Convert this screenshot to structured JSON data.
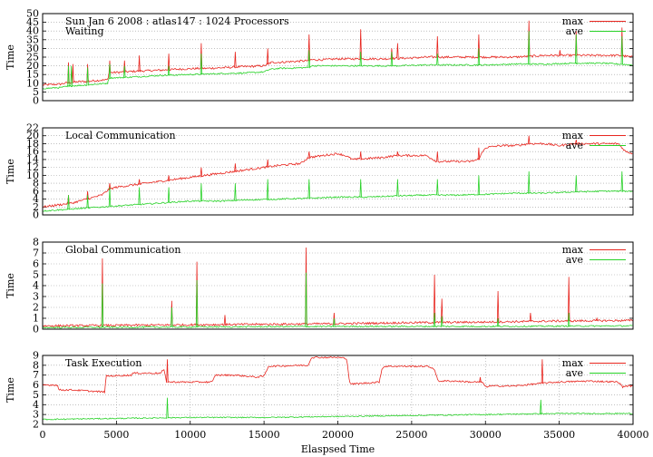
{
  "chart_data": [
    {
      "type": "line",
      "title": "Sun Jan 6 2008 : atlas147 : 1024 Processors",
      "subtitle": "Waiting",
      "ylabel": "Time",
      "xlabel": "",
      "ylim": [
        0,
        50
      ],
      "yticks": [
        "0",
        "5",
        "10",
        "15",
        "20",
        "25",
        "30",
        "35",
        "40",
        "45",
        "50"
      ],
      "ytick_values": [
        0,
        5,
        10,
        15,
        20,
        25,
        30,
        35,
        40,
        45,
        50
      ],
      "xlim": [
        0,
        40000
      ],
      "grid": true,
      "legend_position": "top-right",
      "colors": {
        "max": "#e8261f",
        "ave": "#28d228"
      },
      "series": [
        {
          "name": "max",
          "x": [
            0,
            1200,
            1500,
            2000,
            2600,
            3000,
            3500,
            4400,
            4500,
            5500,
            6500,
            8000,
            9000,
            10500,
            11000,
            12500,
            13500,
            15000,
            15500,
            16000,
            17000,
            18000,
            18200,
            19000,
            20000,
            21000,
            22000,
            23000,
            25000,
            26000,
            27000,
            28000,
            30000,
            31000,
            32000,
            33000,
            34000,
            35000,
            36000,
            37000,
            38000,
            39000,
            40000
          ],
          "values": [
            9,
            9.5,
            10,
            10.5,
            11,
            11,
            11.5,
            12,
            16,
            16.5,
            17,
            17.5,
            18,
            18.5,
            18.5,
            19,
            19.5,
            20,
            22,
            22,
            22.5,
            23,
            23.5,
            23.5,
            24,
            24,
            24,
            24,
            24.5,
            25,
            25,
            25,
            25,
            25,
            25,
            25.5,
            26,
            26,
            26,
            26,
            26,
            26,
            25
          ],
          "spikes": [
            [
              1700,
              22
            ],
            [
              2000,
              21
            ],
            [
              3000,
              21
            ],
            [
              4500,
              23
            ],
            [
              5500,
              23
            ],
            [
              6500,
              26
            ],
            [
              8500,
              27
            ],
            [
              10700,
              33
            ],
            [
              13000,
              28
            ],
            [
              15200,
              30
            ],
            [
              18000,
              38
            ],
            [
              21500,
              41
            ],
            [
              23600,
              30
            ],
            [
              24000,
              33
            ],
            [
              26700,
              37
            ],
            [
              29500,
              38
            ],
            [
              32900,
              46
            ],
            [
              35000,
              29
            ],
            [
              36100,
              40
            ],
            [
              39200,
              42
            ]
          ]
        },
        {
          "name": "ave",
          "x": [
            0,
            1200,
            1500,
            2000,
            3000,
            4400,
            4500,
            6000,
            8000,
            10000,
            12000,
            14000,
            15000,
            15400,
            16000,
            18000,
            18200,
            20000,
            22000,
            24000,
            26000,
            28000,
            30000,
            32000,
            34000,
            36000,
            38000,
            40000
          ],
          "values": [
            7,
            7.5,
            8,
            8.5,
            9,
            10,
            13,
            13.5,
            14.5,
            15,
            15.5,
            16,
            16.5,
            18,
            18.5,
            19,
            20,
            20,
            20,
            20,
            20.5,
            20.5,
            20.5,
            21,
            21,
            21.5,
            21.5,
            20.5
          ],
          "spikes": [
            [
              1700,
              20
            ],
            [
              1900,
              20
            ],
            [
              3000,
              19
            ],
            [
              4500,
              21
            ],
            [
              5500,
              20
            ],
            [
              8500,
              20
            ],
            [
              10700,
              27
            ],
            [
              18000,
              29
            ],
            [
              21500,
              28
            ],
            [
              23600,
              28
            ],
            [
              26700,
              27
            ],
            [
              29500,
              30
            ],
            [
              32900,
              40
            ],
            [
              36100,
              38
            ],
            [
              39200,
              37
            ]
          ]
        }
      ]
    },
    {
      "type": "line",
      "title": "Local Communication",
      "ylabel": "Time",
      "xlabel": "",
      "ylim": [
        0,
        22
      ],
      "yticks": [
        "0",
        "2",
        "4",
        "6",
        "8",
        "10",
        "12",
        "14",
        "16",
        "18",
        "20",
        "22"
      ],
      "ytick_values": [
        0,
        2,
        4,
        6,
        8,
        10,
        12,
        14,
        16,
        18,
        20,
        22
      ],
      "xlim": [
        0,
        40000
      ],
      "grid": true,
      "legend_position": "top-right",
      "colors": {
        "max": "#e8261f",
        "ave": "#28d228"
      },
      "series": [
        {
          "name": "max",
          "x": [
            0,
            1000,
            2000,
            3000,
            4000,
            4500,
            5000,
            6000,
            8000,
            10000,
            12000,
            14000,
            15000,
            16000,
            17500,
            18000,
            20000,
            20500,
            21000,
            23000,
            24000,
            26000,
            26700,
            27000,
            28000,
            29000,
            29500,
            30000,
            31000,
            32000,
            33000,
            34000,
            35000,
            36000,
            37000,
            38000,
            39000,
            39500,
            40000
          ],
          "values": [
            2,
            2.5,
            3,
            4,
            5,
            6.5,
            7,
            7.5,
            8.5,
            9.5,
            10.5,
            11.5,
            12,
            12.5,
            13,
            14.5,
            15.5,
            15,
            14,
            14.5,
            15,
            15,
            13.5,
            13.5,
            13.5,
            13.5,
            14,
            17,
            17.5,
            17.5,
            18,
            18,
            17.5,
            18,
            18,
            18,
            18,
            16,
            15.5
          ],
          "spikes": [
            [
              1700,
              5
            ],
            [
              3000,
              6
            ],
            [
              4500,
              8
            ],
            [
              6500,
              9
            ],
            [
              8500,
              10
            ],
            [
              10700,
              12
            ],
            [
              13000,
              13
            ],
            [
              15200,
              14
            ],
            [
              18000,
              16
            ],
            [
              21500,
              16
            ],
            [
              24000,
              16
            ],
            [
              26700,
              16
            ],
            [
              29500,
              17
            ],
            [
              32900,
              20
            ],
            [
              36100,
              19
            ],
            [
              38500,
              18
            ]
          ]
        },
        {
          "name": "ave",
          "x": [
            0,
            2000,
            4000,
            6000,
            8000,
            10000,
            12000,
            14000,
            16000,
            18000,
            20000,
            22000,
            24000,
            26000,
            28000,
            30000,
            32000,
            34000,
            36000,
            38000,
            40000
          ],
          "values": [
            1,
            1.5,
            2,
            2.5,
            3,
            3.5,
            3.5,
            3.8,
            4,
            4.2,
            4.5,
            4.5,
            4.8,
            5,
            5,
            5.2,
            5.5,
            5.5,
            5.8,
            6,
            6
          ],
          "spikes": [
            [
              1700,
              5
            ],
            [
              3000,
              5
            ],
            [
              4500,
              7
            ],
            [
              6500,
              7
            ],
            [
              8500,
              7
            ],
            [
              10700,
              8
            ],
            [
              13000,
              8
            ],
            [
              15200,
              9
            ],
            [
              18000,
              9
            ],
            [
              21500,
              9
            ],
            [
              24000,
              9
            ],
            [
              26700,
              9
            ],
            [
              29500,
              10
            ],
            [
              32900,
              11
            ],
            [
              36100,
              10
            ],
            [
              39200,
              11
            ]
          ]
        }
      ]
    },
    {
      "type": "line",
      "title": "Global Communication",
      "ylabel": "Time",
      "xlabel": "",
      "ylim": [
        0,
        8
      ],
      "yticks": [
        "0",
        "1",
        "2",
        "3",
        "4",
        "5",
        "6",
        "7",
        "8"
      ],
      "ytick_values": [
        0,
        1,
        2,
        3,
        4,
        5,
        6,
        7,
        8
      ],
      "xlim": [
        0,
        40000
      ],
      "grid": true,
      "legend_position": "top-right",
      "colors": {
        "max": "#e8261f",
        "ave": "#28d228"
      },
      "series": [
        {
          "name": "max",
          "x": [
            0,
            5000,
            10000,
            15000,
            20000,
            25000,
            30000,
            35000,
            40000
          ],
          "values": [
            0.3,
            0.35,
            0.4,
            0.45,
            0.5,
            0.6,
            0.65,
            0.75,
            0.8
          ],
          "spikes": [
            [
              4000,
              6.5
            ],
            [
              8700,
              2.6
            ],
            [
              10400,
              6.2
            ],
            [
              12300,
              1.3
            ],
            [
              17800,
              7.5
            ],
            [
              19700,
              1.5
            ],
            [
              26500,
              5
            ],
            [
              27000,
              2.8
            ],
            [
              30800,
              3.5
            ],
            [
              33000,
              1.5
            ],
            [
              35600,
              4.8
            ],
            [
              37500,
              1
            ]
          ]
        },
        {
          "name": "ave",
          "x": [
            0,
            10000,
            20000,
            30000,
            40000
          ],
          "values": [
            0.15,
            0.2,
            0.25,
            0.25,
            0.3
          ],
          "spikes": [
            [
              4000,
              4.2
            ],
            [
              8700,
              2
            ],
            [
              10400,
              4.5
            ],
            [
              17800,
              5.2
            ],
            [
              19700,
              1
            ],
            [
              26500,
              1.5
            ],
            [
              27000,
              1.2
            ],
            [
              30800,
              1
            ],
            [
              35600,
              1.5
            ]
          ]
        }
      ]
    },
    {
      "type": "line",
      "title": "Task Execution",
      "ylabel": "Time",
      "xlabel": "Elaspsed Time",
      "ylim": [
        2,
        9
      ],
      "yticks": [
        "2",
        "3",
        "4",
        "5",
        "6",
        "7",
        "8",
        "9"
      ],
      "ytick_values": [
        2,
        3,
        4,
        5,
        6,
        7,
        8,
        9
      ],
      "xlim": [
        0,
        40000
      ],
      "xticks": [
        "0",
        "5000",
        "10000",
        "15000",
        "20000",
        "25000",
        "30000",
        "35000",
        "40000"
      ],
      "xtick_values": [
        0,
        5000,
        10000,
        15000,
        20000,
        25000,
        30000,
        35000,
        40000
      ],
      "grid": true,
      "legend_position": "top-right",
      "colors": {
        "max": "#e8261f",
        "ave": "#28d228"
      },
      "series": [
        {
          "name": "max",
          "x": [
            0,
            1000,
            1100,
            2000,
            4000,
            4200,
            4300,
            6000,
            6100,
            7500,
            8000,
            8200,
            8400,
            10000,
            11500,
            11700,
            11800,
            13000,
            14500,
            15000,
            15300,
            17500,
            18000,
            18200,
            20000,
            20600,
            20800,
            21000,
            22000,
            22800,
            23000,
            23200,
            26000,
            26500,
            26800,
            28000,
            29000,
            29800,
            30000,
            30300,
            32000,
            34000,
            35000,
            37000,
            39000,
            39300,
            39500
          ],
          "values": [
            6,
            6,
            5.5,
            5.5,
            5.3,
            5.3,
            6.9,
            7,
            7.2,
            7.2,
            7.2,
            7.6,
            6.3,
            6.3,
            6.3,
            7,
            7,
            7,
            6.8,
            6.9,
            7.9,
            8,
            8,
            8.8,
            8.8,
            8.7,
            6.2,
            6.1,
            6.2,
            6.3,
            7.7,
            7.9,
            7.9,
            7.7,
            6.4,
            6.4,
            6.3,
            6.3,
            5.8,
            5.9,
            5.9,
            6.2,
            6.3,
            6.4,
            6.3,
            5.8,
            5.9
          ],
          "spikes": [
            [
              8400,
              8.6
            ],
            [
              29600,
              6.8
            ],
            [
              33800,
              8.6
            ]
          ]
        },
        {
          "name": "ave",
          "x": [
            0,
            5000,
            10000,
            15000,
            20000,
            25000,
            30000,
            35000,
            40000
          ],
          "values": [
            2.5,
            2.6,
            2.7,
            2.7,
            2.8,
            2.9,
            3,
            3.1,
            3.1
          ],
          "spikes": [
            [
              8400,
              4.7
            ],
            [
              33700,
              4.5
            ]
          ]
        }
      ]
    }
  ]
}
